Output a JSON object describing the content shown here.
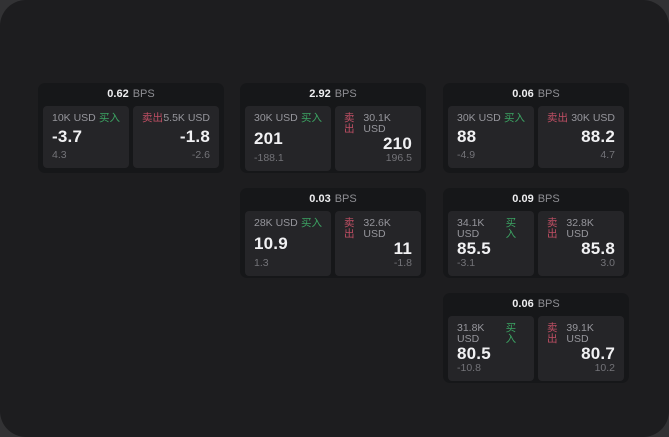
{
  "colors": {
    "buy": "#3ca463",
    "sell": "#c04f64",
    "surface": "#1d1d1f",
    "card": "#161719",
    "panel": "#252528"
  },
  "labels": {
    "buy": "买入",
    "sell": "卖出",
    "bps_unit": "BPS"
  },
  "cards": [
    {
      "col": 0,
      "row": 0,
      "bps": "0.62",
      "buy": {
        "amount": "10K USD",
        "price": "-3.7",
        "delta": "4.3"
      },
      "sell": {
        "amount": "5.5K USD",
        "price": "-1.8",
        "delta": "-2.6"
      }
    },
    {
      "col": 1,
      "row": 0,
      "bps": "2.92",
      "buy": {
        "amount": "30K USD",
        "price": "201",
        "delta": "-188.1"
      },
      "sell": {
        "amount": "30.1K USD",
        "price": "210",
        "delta": "196.5"
      }
    },
    {
      "col": 2,
      "row": 0,
      "bps": "0.06",
      "buy": {
        "amount": "30K USD",
        "price": "88",
        "delta": "-4.9"
      },
      "sell": {
        "amount": "30K USD",
        "price": "88.2",
        "delta": "4.7"
      }
    },
    {
      "col": 1,
      "row": 1,
      "bps": "0.03",
      "buy": {
        "amount": "28K USD",
        "price": "10.9",
        "delta": "1.3"
      },
      "sell": {
        "amount": "32.6K USD",
        "price": "11",
        "delta": "-1.8"
      }
    },
    {
      "col": 2,
      "row": 1,
      "bps": "0.09",
      "buy": {
        "amount": "34.1K USD",
        "price": "85.5",
        "delta": "-3.1"
      },
      "sell": {
        "amount": "32.8K USD",
        "price": "85.8",
        "delta": "3.0"
      }
    },
    {
      "col": 2,
      "row": 2,
      "bps": "0.06",
      "buy": {
        "amount": "31.8K USD",
        "price": "80.5",
        "delta": "-10.8"
      },
      "sell": {
        "amount": "39.1K USD",
        "price": "80.7",
        "delta": "10.2"
      }
    }
  ]
}
